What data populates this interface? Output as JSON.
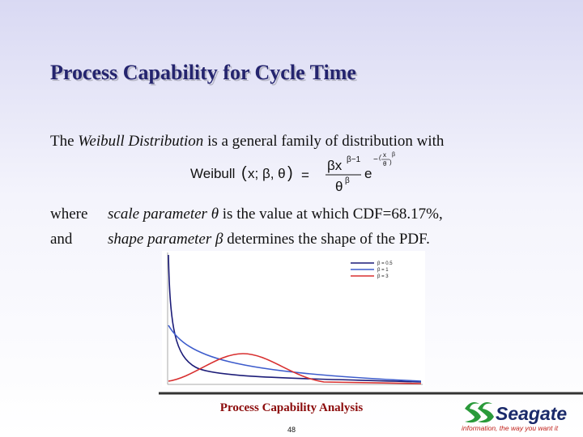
{
  "header": {
    "title": "Process Capability for Cycle Time"
  },
  "body": {
    "intro": {
      "before": "The",
      "term": "Weibull Distribution",
      "after": "is a general family of distribution with"
    },
    "formula": {
      "lhs": "Weibull",
      "args": "x; β, θ",
      "equals": "=",
      "numerator": "βx",
      "num_exp": "β−1",
      "denominator": "θ",
      "den_exp": "β",
      "exp_base": "e",
      "exp_sign": "−",
      "exp_num": "x",
      "exp_den": "θ",
      "exp_power": "β"
    },
    "definitions": [
      {
        "label": "where",
        "term": "scale parameter θ",
        "text": "is the value at which CDF=68.17%,"
      },
      {
        "label": "and",
        "term": "shape parameter β",
        "text": "determines the shape of the PDF."
      }
    ]
  },
  "figure": {
    "legend": [
      {
        "name": "β = 0.5",
        "color": "#1c1c78"
      },
      {
        "name": "β = 1",
        "color": "#3d5ccc"
      },
      {
        "name": "β = 3",
        "color": "#d83030"
      }
    ]
  },
  "footer": {
    "title": "Process Capability Analysis",
    "page": "48",
    "logo": "Seagate",
    "tagline": "information, the way you want it"
  }
}
